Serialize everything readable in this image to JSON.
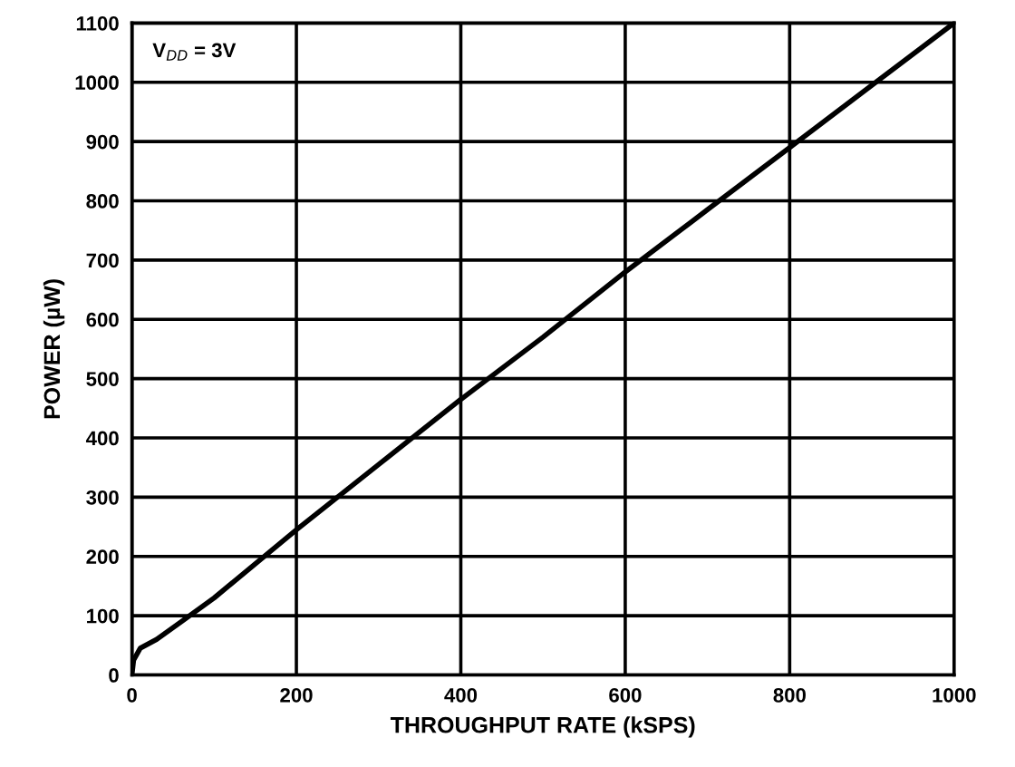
{
  "chart_data": {
    "type": "line",
    "xlabel": "THROUGHPUT RATE (kSPS)",
    "ylabel": "POWER (µW)",
    "annotations": [
      "V$_{DD}$ = 3V"
    ],
    "series": [
      {
        "color": "#000000",
        "x": [
          0,
          2,
          10,
          30,
          60,
          100,
          200,
          300,
          400,
          500,
          600,
          700,
          800,
          900,
          1000
        ],
        "values": [
          0,
          25,
          45,
          60,
          90,
          130,
          245,
          355,
          465,
          570,
          680,
          785,
          890,
          995,
          1100
        ]
      }
    ],
    "xlim": [
      0,
      1000
    ],
    "xticks": [
      0,
      200,
      400,
      600,
      800,
      1000
    ],
    "ylim": [
      0,
      1100
    ],
    "yticks": [
      0,
      100,
      200,
      300,
      400,
      500,
      600,
      700,
      800,
      900,
      1000,
      1100
    ],
    "grid": true,
    "marker": "none",
    "line_style": "solid"
  }
}
